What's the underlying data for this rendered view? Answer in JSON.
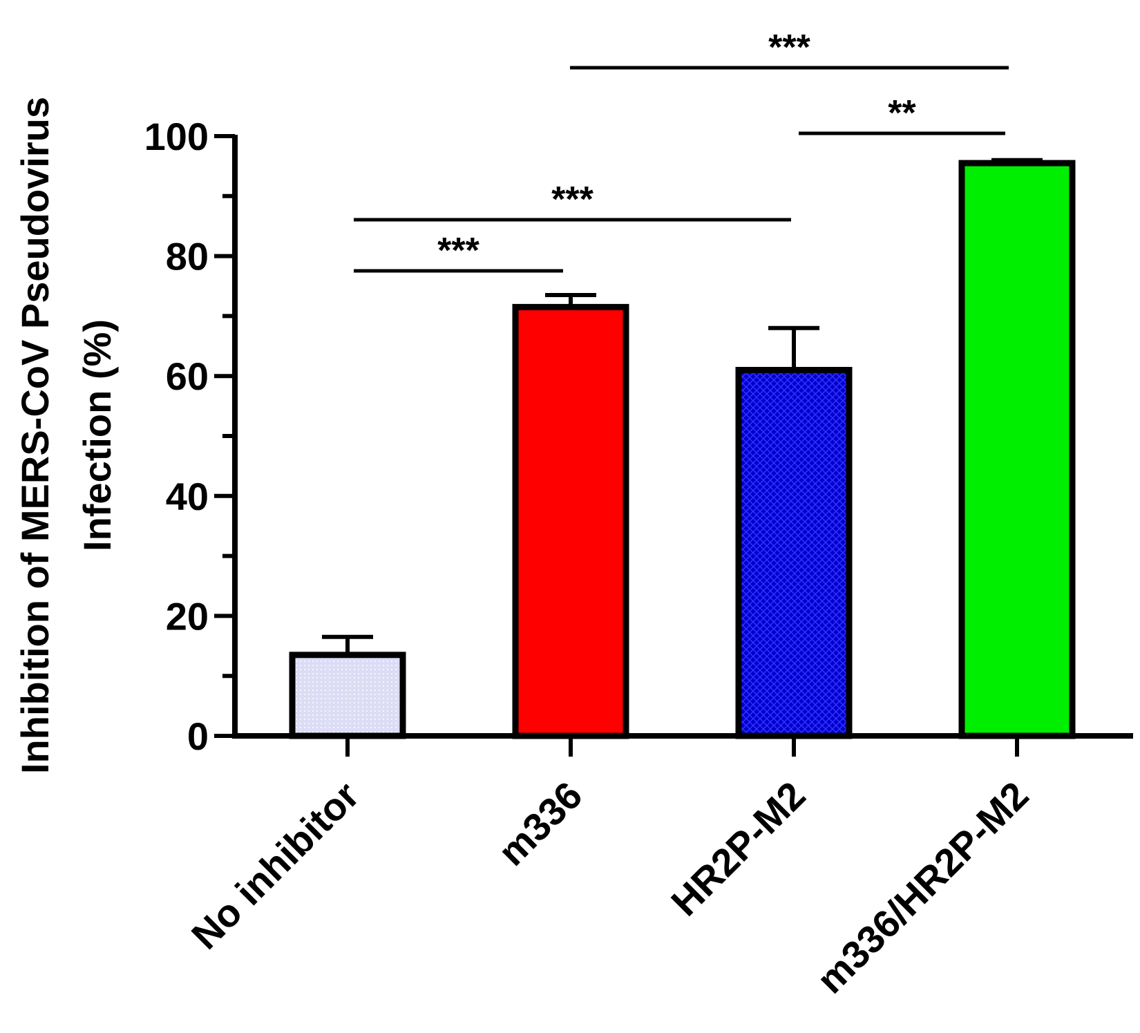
{
  "chart_data": {
    "type": "bar",
    "title": "",
    "ylabel_lines": [
      "Inhibition of MERS-CoV Pseudovirus",
      "Infection (%)"
    ],
    "xlabel": "",
    "ylim": [
      0,
      100
    ],
    "yticks": [
      0,
      20,
      40,
      60,
      80,
      100
    ],
    "categories": [
      "No inhibitor",
      "m336",
      "HR2P-M2",
      "m336/HR2P-M2"
    ],
    "values": [
      13.5,
      71.5,
      61,
      95.5
    ],
    "errors": [
      3,
      2,
      7,
      0.5
    ],
    "colors": [
      "#dcdcf5",
      "#ff0000",
      "#0000cc",
      "#00ee00"
    ],
    "patterns": [
      "dotted",
      "none",
      "crosshatch",
      "none"
    ],
    "significance": [
      {
        "from": 0,
        "to": 1,
        "label": "***"
      },
      {
        "from": 0,
        "to": 2,
        "label": "***"
      },
      {
        "from": 2,
        "to": 3,
        "label": "**"
      },
      {
        "from": 1,
        "to": 3,
        "label": "***"
      }
    ]
  }
}
